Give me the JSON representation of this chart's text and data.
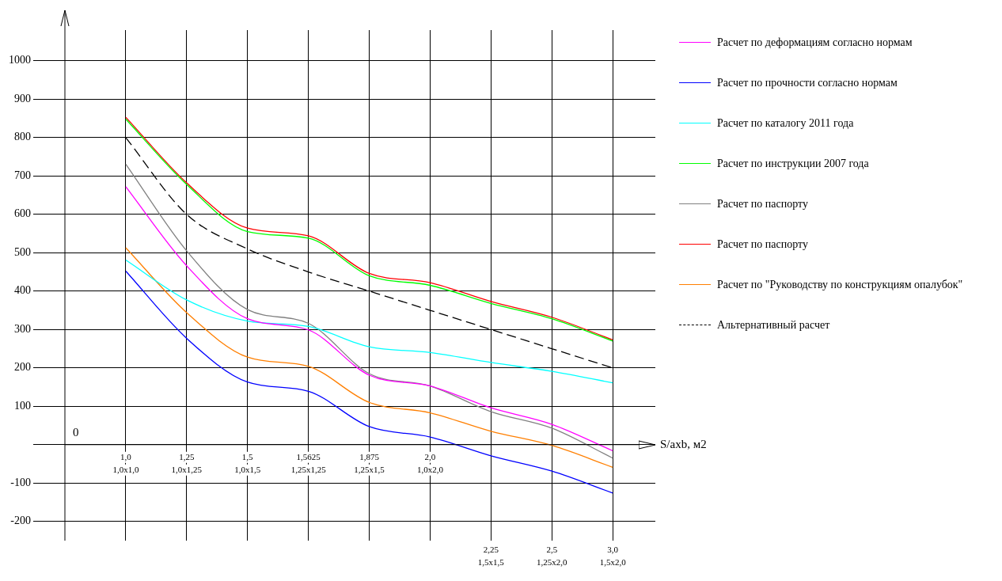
{
  "chart_data": {
    "type": "line",
    "xlabel": "S/axb, м2",
    "categories": [
      "1,0\n1,0x1,0",
      "1,25\n1,0x1,25",
      "1,5\n1,0x1,5",
      "1,5625\n1,25x1,25",
      "1,875\n1,25x1,5",
      "2,0\n1,0x2,0",
      "2,25\n1,5x1,5",
      "2,5\n1,25x2,0",
      "3,0\n1,5x2,0"
    ],
    "series": [
      {
        "name": "Расчет по деформациям согласно нормам",
        "color": "#ff00ff",
        "values": [
          672,
          466,
          328,
          299,
          181,
          153,
          96,
          53,
          -16
        ]
      },
      {
        "name": "Расчет по прочности согласно нормам",
        "color": "#0000ff",
        "values": [
          452,
          277,
          163,
          139,
          47,
          20,
          -29,
          -69,
          -126
        ]
      },
      {
        "name": "Расчет по каталогу 2011 года",
        "color": "#00ffff",
        "values": [
          481,
          377,
          322,
          308,
          255,
          240,
          214,
          191,
          161
        ]
      },
      {
        "name": "Расчет по инструкции 2007 года",
        "color": "#00ff00",
        "values": [
          848,
          678,
          555,
          538,
          440,
          415,
          368,
          328,
          270
        ]
      },
      {
        "name": "Расчет по паспорту",
        "color": "#808080",
        "values": [
          731,
          505,
          352,
          316,
          185,
          153,
          86,
          43,
          -35
        ]
      },
      {
        "name": "Расчет по паспорту",
        "color": "#ff0000",
        "values": [
          853,
          682,
          564,
          544,
          446,
          422,
          373,
          332,
          273
        ]
      },
      {
        "name": "Расчет по \"Руководству по конструкциям опалубок\"",
        "color": "#ff7f00",
        "values": [
          513,
          344,
          228,
          204,
          110,
          83,
          35,
          -2,
          -59
        ]
      },
      {
        "name": "Альтернативный расчет",
        "color": "#000000",
        "line_style": "dashed",
        "values": [
          800,
          600,
          510,
          450,
          400,
          350,
          300,
          250,
          200
        ]
      }
    ],
    "ylim": [
      -250,
      1080
    ],
    "yticks": [
      -200,
      -100,
      {
        "value": 0,
        "label": null
      },
      100,
      200,
      300,
      400,
      500,
      600,
      700,
      800,
      900,
      1000
    ],
    "annotations": [
      "0"
    ],
    "grid": true,
    "legend": "right",
    "marker": "none",
    "line_style": "solid"
  }
}
